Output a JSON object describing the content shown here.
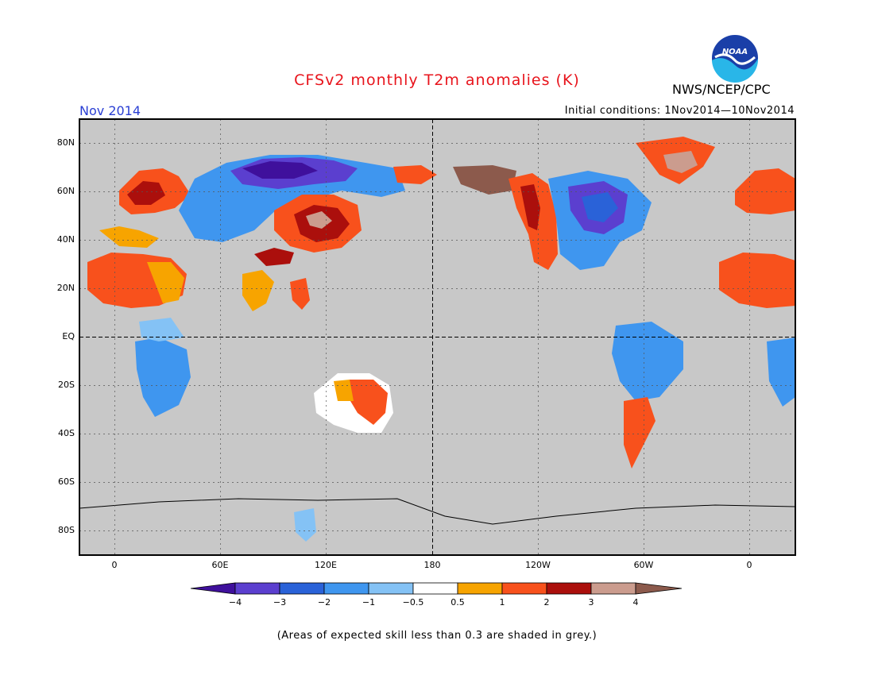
{
  "title": "CFSv2 monthly T2m anomalies (K)",
  "agency": "NWS/NCEP/CPC",
  "logo": {
    "icon": "noaa-logo-icon",
    "text": "NOAA",
    "colors": [
      "#1a3fa8",
      "#29b6e8"
    ]
  },
  "month_label": "Nov 2014",
  "initial_conditions": "Initial conditions: 1Nov2014—10Nov2014",
  "map": {
    "land_color": "#c8c8c8",
    "grid_style": "dotted",
    "lat_labels": [
      "80N",
      "60N",
      "40N",
      "20N",
      "EQ",
      "20S",
      "40S",
      "60S",
      "80S"
    ],
    "lon_labels": [
      "0",
      "60E",
      "120E",
      "180",
      "120W",
      "60W",
      "0"
    ]
  },
  "colorbar": {
    "colors": [
      "#3f109c",
      "#5b3fcf",
      "#2a62d8",
      "#3f96ef",
      "#84c2f5",
      "#ffffff",
      "#f7a400",
      "#f8511c",
      "#ab0f0c",
      "#cb9c8e",
      "#8c5a4c"
    ],
    "tick_labels": [
      "−4",
      "−3",
      "−2",
      "−1",
      "−0.5",
      "0.5",
      "1",
      "2",
      "3",
      "4"
    ]
  },
  "footnote": "(Areas of expected skill less than 0.3 are shaded in grey.)"
}
